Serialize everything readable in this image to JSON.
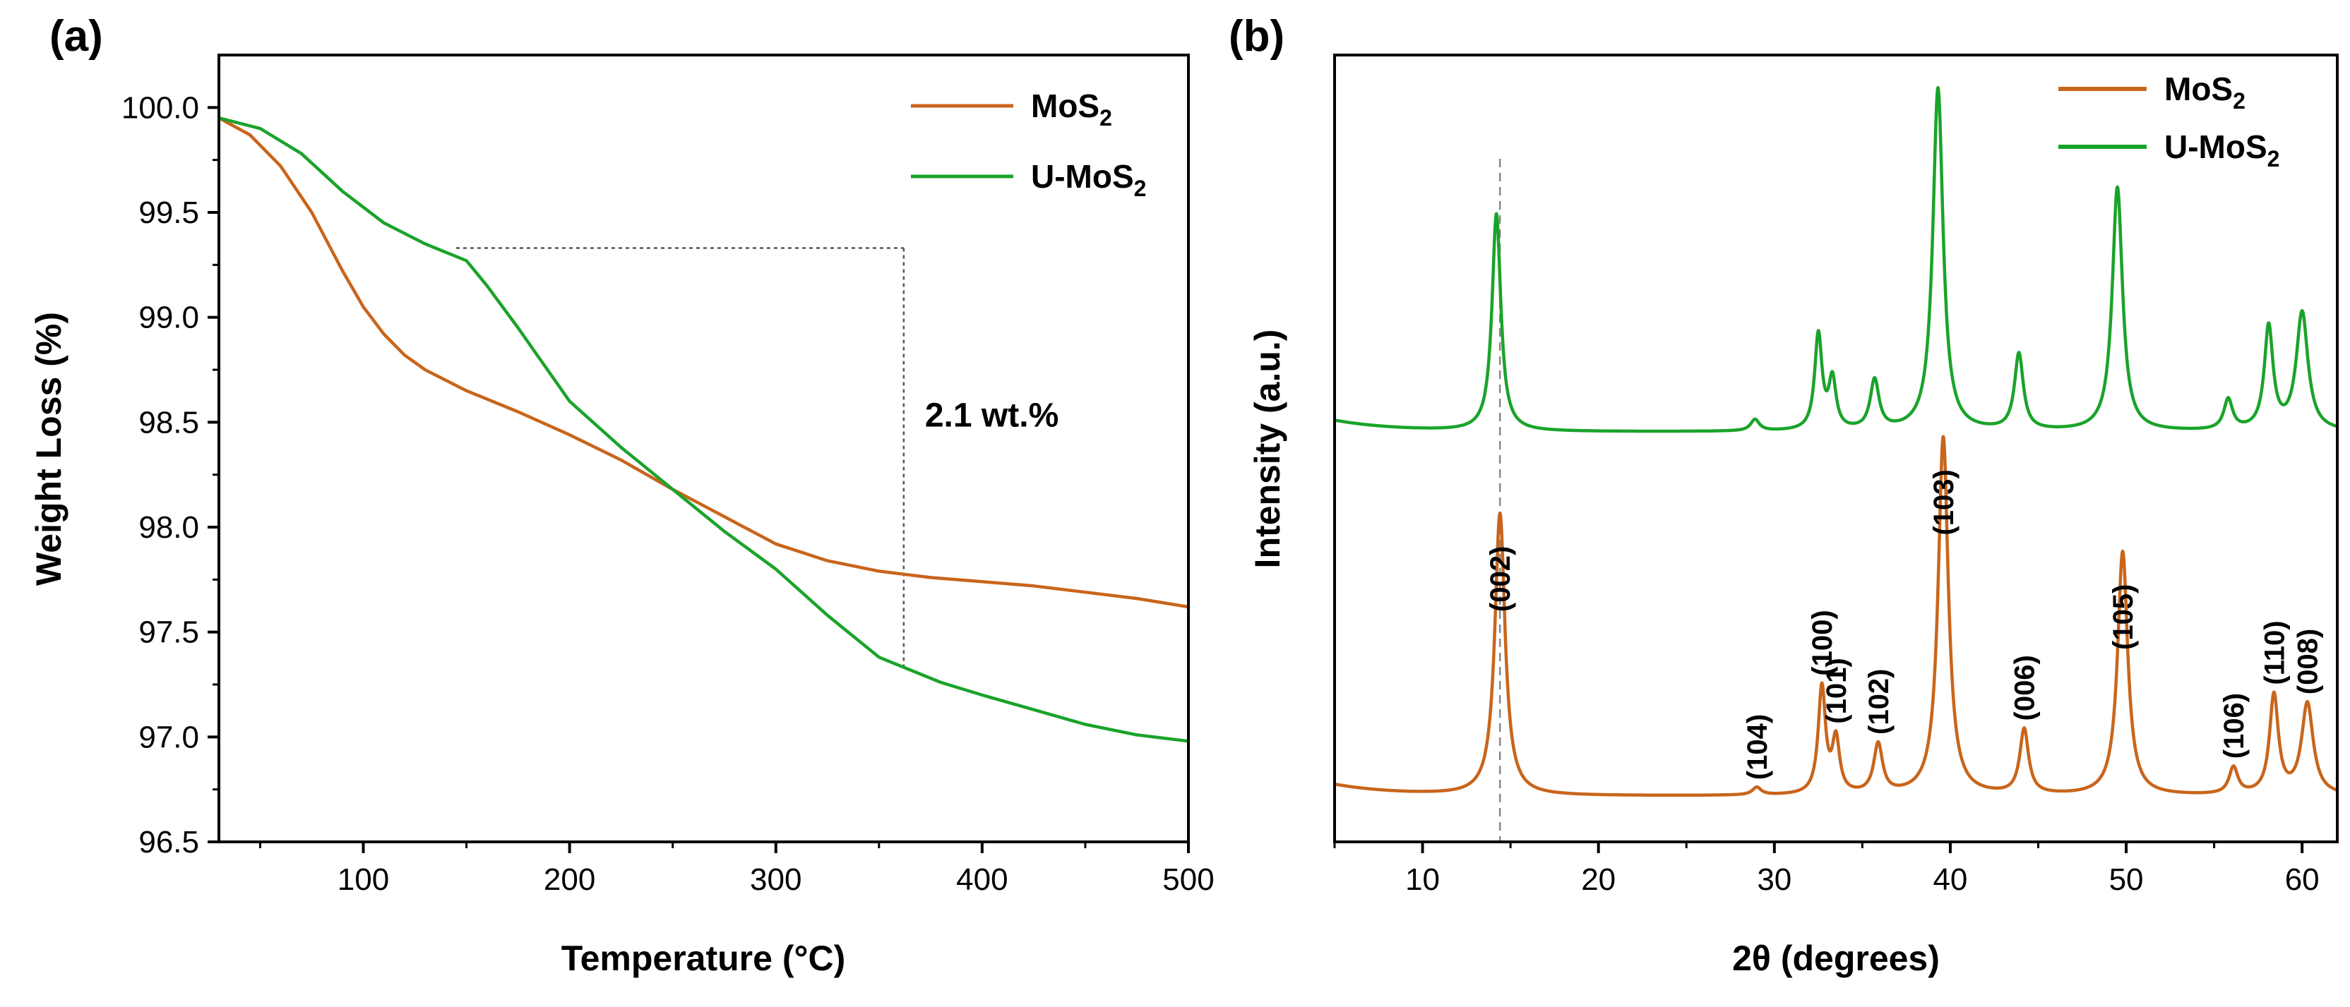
{
  "colors": {
    "mos2": "#c8651b",
    "umos2": "#1aa32a",
    "axis": "#000000",
    "guide": "#555555"
  },
  "chart_data": [
    {
      "type": "line",
      "panel_label": "(a)",
      "xlabel": "Temperature (°C)",
      "ylabel": "Weight Loss (%)",
      "xlim": [
        30,
        500
      ],
      "ylim": [
        96.5,
        100.25
      ],
      "xticks": [
        100,
        200,
        300,
        400,
        500
      ],
      "yticks": [
        96.5,
        97.0,
        97.5,
        98.0,
        98.5,
        99.0,
        99.5,
        100.0
      ],
      "legend_position": "top-right",
      "series": [
        {
          "name": "MoS2",
          "color": "#c8651b",
          "x": [
            30,
            45,
            60,
            75,
            90,
            100,
            110,
            120,
            130,
            140,
            150,
            175,
            200,
            225,
            250,
            275,
            300,
            325,
            350,
            375,
            400,
            425,
            450,
            475,
            500
          ],
          "y": [
            99.95,
            99.87,
            99.72,
            99.5,
            99.22,
            99.05,
            98.92,
            98.82,
            98.75,
            98.7,
            98.65,
            98.55,
            98.44,
            98.32,
            98.18,
            98.05,
            97.92,
            97.84,
            97.79,
            97.76,
            97.74,
            97.72,
            97.69,
            97.66,
            97.62
          ]
        },
        {
          "name": "U-MoS2",
          "color": "#1aa32a",
          "x": [
            30,
            50,
            70,
            90,
            110,
            130,
            150,
            160,
            175,
            200,
            225,
            250,
            275,
            300,
            325,
            350,
            365,
            380,
            400,
            425,
            450,
            475,
            500
          ],
          "y": [
            99.95,
            99.9,
            99.78,
            99.6,
            99.45,
            99.35,
            99.27,
            99.15,
            98.95,
            98.6,
            98.38,
            98.18,
            97.98,
            97.8,
            97.58,
            97.38,
            97.32,
            97.26,
            97.2,
            97.13,
            97.06,
            97.01,
            96.98
          ]
        }
      ],
      "annotation": {
        "text": "2.1 wt.%",
        "y_top": 99.33,
        "y_bottom": 97.33,
        "x_start": 145,
        "x_line": 362
      }
    },
    {
      "type": "line",
      "panel_label": "(b)",
      "xlabel": "2θ (degrees)",
      "ylabel": "Intensity (a.u.)",
      "xlim": [
        5,
        62
      ],
      "xticks": [
        10,
        20,
        30,
        40,
        50,
        60
      ],
      "legend_position": "top-right",
      "reference_line_x": 14.4,
      "series": [
        {
          "name": "MoS2",
          "color": "#c8651b",
          "baseline": 0.03,
          "peaks": [
            {
              "pos": 14.4,
              "height": 0.74,
              "width": 0.35,
              "label": "(002)"
            },
            {
              "pos": 29.0,
              "height": 0.02,
              "width": 0.3,
              "label": "(104)"
            },
            {
              "pos": 32.7,
              "height": 0.28,
              "width": 0.25,
              "label": "(100)"
            },
            {
              "pos": 33.5,
              "height": 0.14,
              "width": 0.25,
              "label": "(101)"
            },
            {
              "pos": 35.9,
              "height": 0.13,
              "width": 0.3,
              "label": "(102)"
            },
            {
              "pos": 39.6,
              "height": 0.94,
              "width": 0.35,
              "label": "(103)"
            },
            {
              "pos": 44.2,
              "height": 0.17,
              "width": 0.3,
              "label": "(006)"
            },
            {
              "pos": 49.8,
              "height": 0.64,
              "width": 0.35,
              "label": "(105)"
            },
            {
              "pos": 56.1,
              "height": 0.07,
              "width": 0.3,
              "label": "(106)"
            },
            {
              "pos": 58.4,
              "height": 0.26,
              "width": 0.3,
              "label": "(110)"
            },
            {
              "pos": 60.3,
              "height": 0.24,
              "width": 0.4,
              "label": "(008)"
            }
          ]
        },
        {
          "name": "U-MoS2",
          "color": "#1aa32a",
          "baseline": 0.03,
          "peaks": [
            {
              "pos": 14.2,
              "height": 0.57,
              "width": 0.3
            },
            {
              "pos": 28.9,
              "height": 0.03,
              "width": 0.3
            },
            {
              "pos": 32.5,
              "height": 0.25,
              "width": 0.25
            },
            {
              "pos": 33.3,
              "height": 0.13,
              "width": 0.25
            },
            {
              "pos": 35.7,
              "height": 0.13,
              "width": 0.3
            },
            {
              "pos": 39.3,
              "height": 0.9,
              "width": 0.35
            },
            {
              "pos": 43.9,
              "height": 0.2,
              "width": 0.3
            },
            {
              "pos": 49.5,
              "height": 0.64,
              "width": 0.35
            },
            {
              "pos": 55.8,
              "height": 0.08,
              "width": 0.3
            },
            {
              "pos": 58.1,
              "height": 0.27,
              "width": 0.3
            },
            {
              "pos": 60.0,
              "height": 0.31,
              "width": 0.4
            }
          ]
        }
      ]
    }
  ]
}
